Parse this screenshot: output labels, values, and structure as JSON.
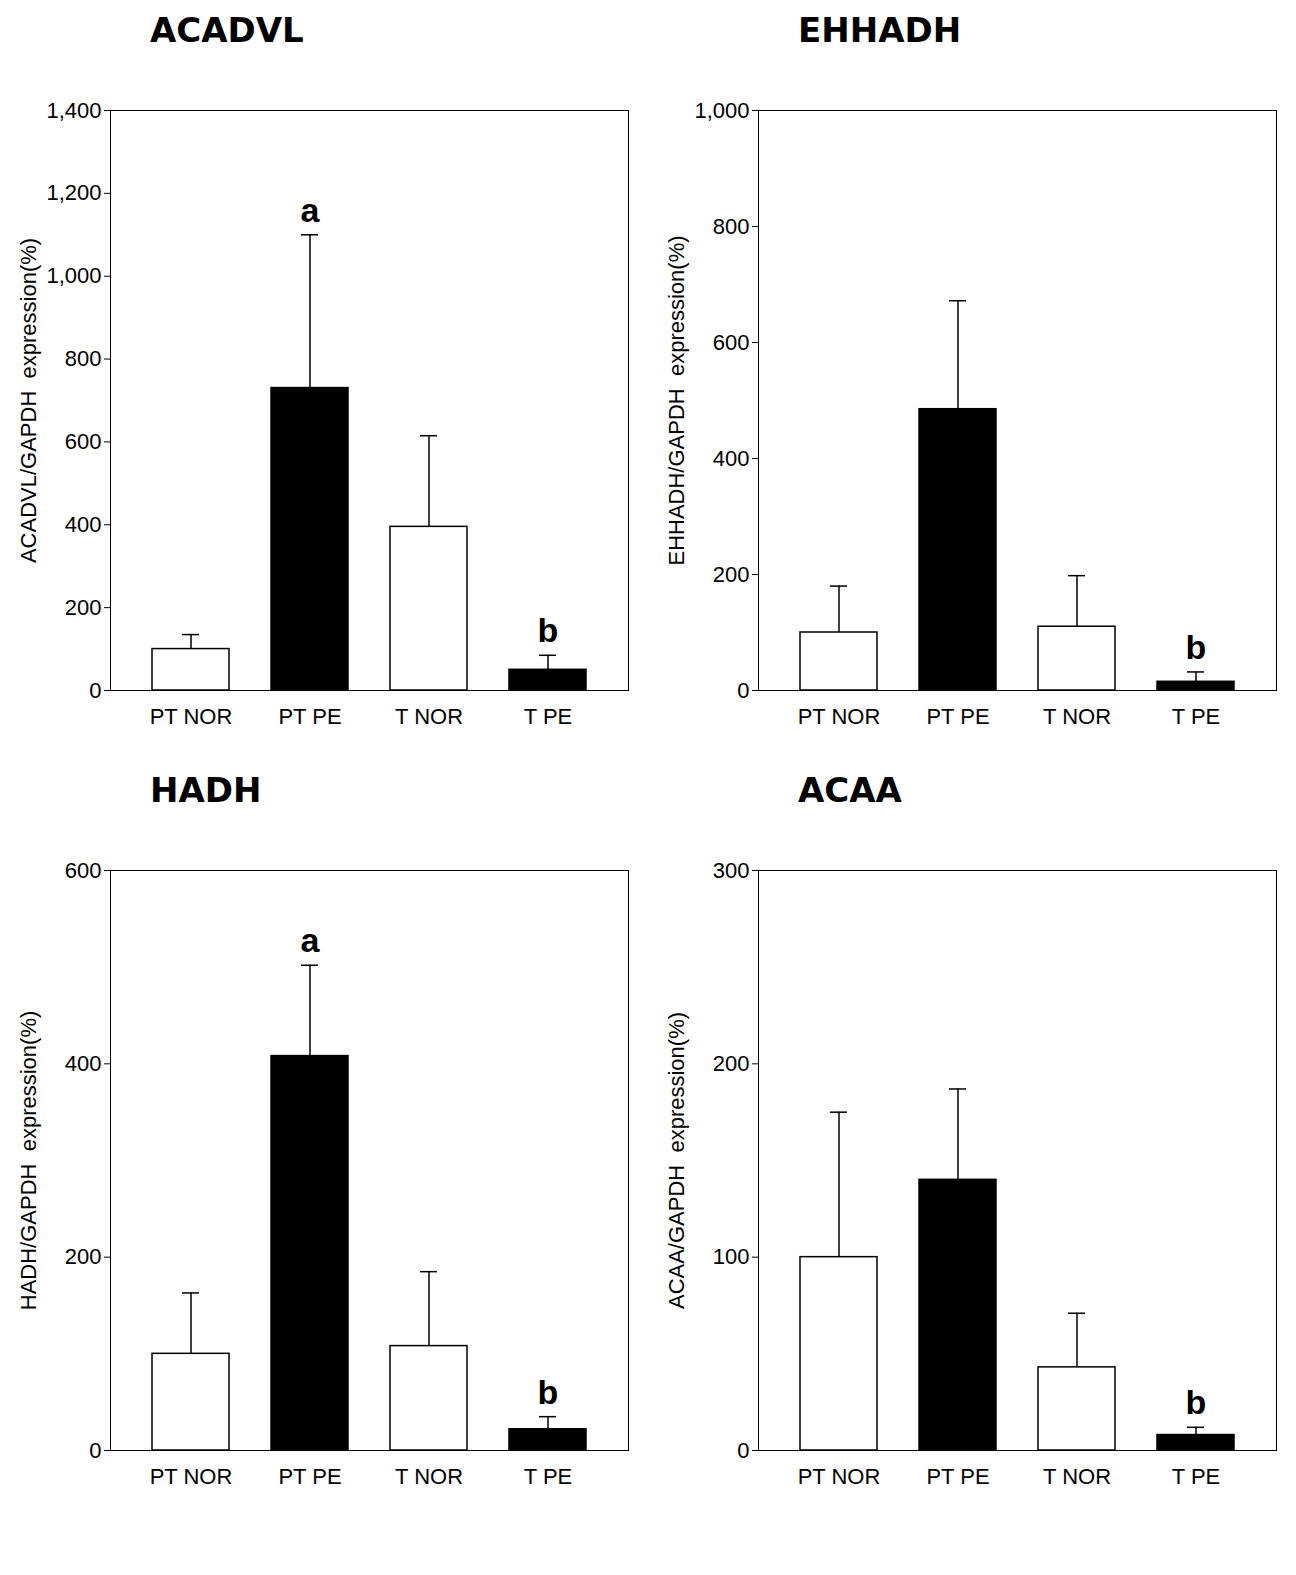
{
  "chart_data": [
    {
      "type": "bar",
      "title": "ACADVL",
      "ylabel": "ACADVL/GAPDH  expression(%)",
      "categories": [
        "PT NOR",
        "PT PE",
        "T NOR",
        "T PE"
      ],
      "values": [
        100,
        730,
        395,
        50
      ],
      "errors": [
        35,
        370,
        220,
        35
      ],
      "colors": [
        "#ffffff",
        "#000000",
        "#ffffff",
        "#000000"
      ],
      "ylim": [
        0,
        1400
      ],
      "yticks": [
        0,
        200,
        400,
        600,
        800,
        1000,
        1200,
        1400
      ],
      "annotations": [
        {
          "category": "PT PE",
          "text": "a"
        },
        {
          "category": "T PE",
          "text": "b"
        }
      ]
    },
    {
      "type": "bar",
      "title": "EHHADH",
      "ylabel": "EHHADH/GAPDH  expression(%)",
      "categories": [
        "PT NOR",
        "PT PE",
        "T NOR",
        "T PE"
      ],
      "values": [
        100,
        485,
        110,
        15
      ],
      "errors": [
        80,
        187,
        88,
        17
      ],
      "colors": [
        "#ffffff",
        "#000000",
        "#ffffff",
        "#000000"
      ],
      "ylim": [
        0,
        1000
      ],
      "yticks": [
        0,
        200,
        400,
        600,
        800,
        1000
      ],
      "annotations": [
        {
          "category": "T PE",
          "text": "b"
        }
      ]
    },
    {
      "type": "bar",
      "title": "HADH",
      "ylabel": "HADH/GAPDH  expression(%)",
      "categories": [
        "PT NOR",
        "PT PE",
        "T NOR",
        "T PE"
      ],
      "values": [
        100,
        408,
        108,
        22
      ],
      "errors": [
        63,
        94,
        77,
        13
      ],
      "colors": [
        "#ffffff",
        "#000000",
        "#ffffff",
        "#000000"
      ],
      "ylim": [
        0,
        600
      ],
      "yticks": [
        0,
        200,
        400,
        600
      ],
      "annotations": [
        {
          "category": "PT PE",
          "text": "a"
        },
        {
          "category": "T PE",
          "text": "b"
        }
      ]
    },
    {
      "type": "bar",
      "title": "ACAA",
      "ylabel": "ACAA/GAPDH  expression(%)",
      "categories": [
        "PT NOR",
        "PT PE",
        "T NOR",
        "T PE"
      ],
      "values": [
        100,
        140,
        43,
        8
      ],
      "errors": [
        75,
        47,
        28,
        4
      ],
      "colors": [
        "#ffffff",
        "#000000",
        "#ffffff",
        "#000000"
      ],
      "ylim": [
        0,
        300
      ],
      "yticks": [
        0,
        100,
        200,
        300
      ],
      "annotations": [
        {
          "category": "T PE",
          "text": "b"
        }
      ]
    }
  ]
}
